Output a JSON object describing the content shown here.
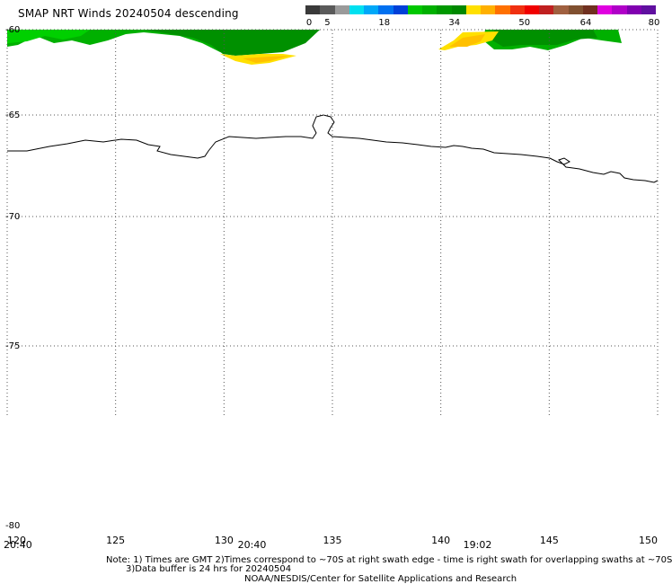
{
  "title": "SMAP NRT Winds  20240504 descending",
  "colorbar": {
    "segments": [
      "#3a3a3a",
      "#5a5a5a",
      "#9a9a9a",
      "#00e0f0",
      "#00a8f8",
      "#0070f0",
      "#0040d8",
      "#00c800",
      "#00b000",
      "#009800",
      "#008800",
      "#ffe000",
      "#ffb000",
      "#ff7000",
      "#f03010",
      "#f00000",
      "#c02020",
      "#a06040",
      "#805030",
      "#703020",
      "#e000e0",
      "#b000c8",
      "#8000b0",
      "#6010a0"
    ],
    "labels": [
      {
        "text": "0",
        "value": 0
      },
      {
        "text": "5",
        "value": 5
      },
      {
        "text": "18",
        "value": 18
      },
      {
        "text": "34",
        "value": 34
      },
      {
        "text": "50",
        "value": 50
      },
      {
        "text": "64",
        "value": 64
      },
      {
        "text": "80",
        "value": 80
      }
    ]
  },
  "axes": {
    "lon_ticks": [
      "120",
      "125",
      "130",
      "135",
      "140",
      "145",
      "150"
    ],
    "lat_ticks": [
      "-60",
      "-65",
      "-70",
      "-75",
      "-80"
    ]
  },
  "swath_times": [
    {
      "text": "20:40",
      "lon": 120
    },
    {
      "text": "20:40",
      "lon": 130.8
    },
    {
      "text": "19:02",
      "lon": 141.2
    }
  ],
  "notes": {
    "line1": "Note: 1) Times are GMT 2)Times correspond to ~70S at right swath edge - time is right swath for overlapping swaths at ~70S",
    "line2": "3)Data buffer is 24 hrs for 20240504",
    "line3": "NOAA/NESDIS/Center for Satellite Applications and Research"
  },
  "wind_colors": {
    "dark_green": "#009000",
    "green": "#00b000",
    "light_green": "#00d000",
    "yellow": "#ffe000",
    "orange_yellow": "#ffc000"
  },
  "coast_color": "#000000"
}
